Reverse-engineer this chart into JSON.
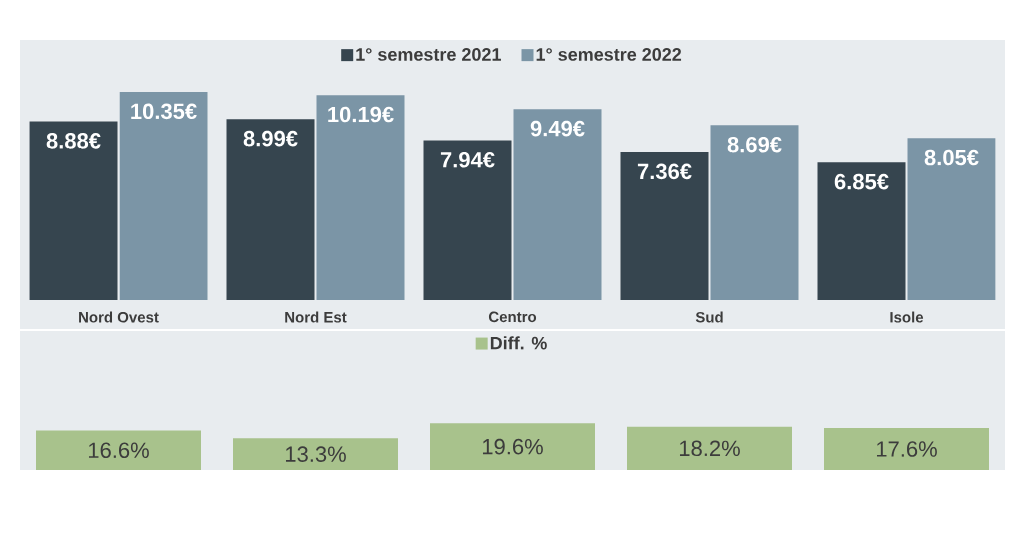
{
  "chart_data": [
    {
      "type": "bar",
      "categories": [
        "Nord Ovest",
        "Nord Est",
        "Centro",
        "Sud",
        "Isole"
      ],
      "legend": "top",
      "series": [
        {
          "name": "1° semestre 2021",
          "color": "#36454f",
          "values": [
            8.88,
            8.99,
            7.94,
            7.36,
            6.85
          ],
          "value_labels": [
            "8.88€",
            "8.99€",
            "7.94€",
            "7.36€",
            "6.85€"
          ]
        },
        {
          "name": "1° semestre 2022",
          "color": "#7b95a6",
          "values": [
            10.35,
            10.19,
            9.49,
            8.69,
            8.05
          ],
          "value_labels": [
            "10.35€",
            "10.19€",
            "9.49€",
            "8.69€",
            "8.05€"
          ]
        }
      ]
    },
    {
      "type": "bar",
      "categories": [
        null,
        null,
        null,
        null,
        null
      ],
      "legend": "top",
      "series": [
        {
          "name": "Diff. %",
          "color": "#a8c28c",
          "values": [
            16.6,
            13.3,
            19.6,
            18.2,
            17.6
          ],
          "value_labels": [
            "16.6%",
            "13.3%",
            "19.6%",
            "18.2%",
            "17.6%"
          ]
        }
      ]
    }
  ]
}
